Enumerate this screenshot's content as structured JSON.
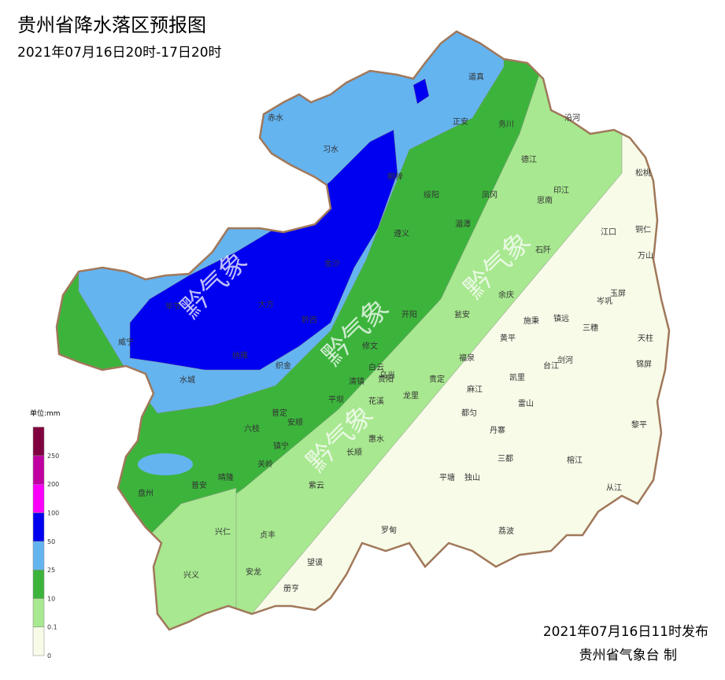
{
  "header": {
    "title": "贵州省降水落区预报图",
    "subtitle": "2021年07月16日20时-17日20时"
  },
  "legend": {
    "unit": "单位:mm",
    "ticks": [
      0,
      0.1,
      10,
      25,
      50,
      100,
      200,
      250
    ],
    "colors": [
      "#f7fbe8",
      "#a8e890",
      "#3cb43c",
      "#64b4f0",
      "#0000f0",
      "#fa00fa",
      "#c000a0",
      "#800040"
    ]
  },
  "counties": [
    "赤水",
    "习水",
    "桐梓",
    "正安",
    "道真",
    "务川",
    "沿河",
    "松桃",
    "德江",
    "印江",
    "思南",
    "凤冈",
    "绥阳",
    "湄潭",
    "遵义",
    "江口",
    "铜仁",
    "石阡",
    "万山",
    "玉屏",
    "余庆",
    "岑巩",
    "金沙",
    "毕节",
    "大方",
    "黔西",
    "瓮安",
    "开阳",
    "施秉",
    "镇远",
    "三穗",
    "天柱",
    "黄平",
    "威宁",
    "织金",
    "纳雍",
    "修文",
    "福泉",
    "台江",
    "剑河",
    "锦屏",
    "凯里",
    "白云",
    "乌当",
    "清镇",
    "贵阳",
    "贵定",
    "水城",
    "麻江",
    "龙里",
    "花溪",
    "平坝",
    "雷山",
    "普定",
    "都匀",
    "安顺",
    "六枝",
    "丹寨",
    "黎平",
    "惠水",
    "长顺",
    "镇宁",
    "三都",
    "榕江",
    "关岭",
    "平塘",
    "独山",
    "晴隆",
    "紫云",
    "普安",
    "盘州",
    "从江",
    "兴仁",
    "罗甸",
    "荔波",
    "贞丰",
    "望谟",
    "兴义",
    "安龙",
    "册亨"
  ],
  "watermark": "黔气象",
  "footer": {
    "issued": "2021年07月16日11时发布",
    "issuer": "贵州省气象台 制"
  }
}
